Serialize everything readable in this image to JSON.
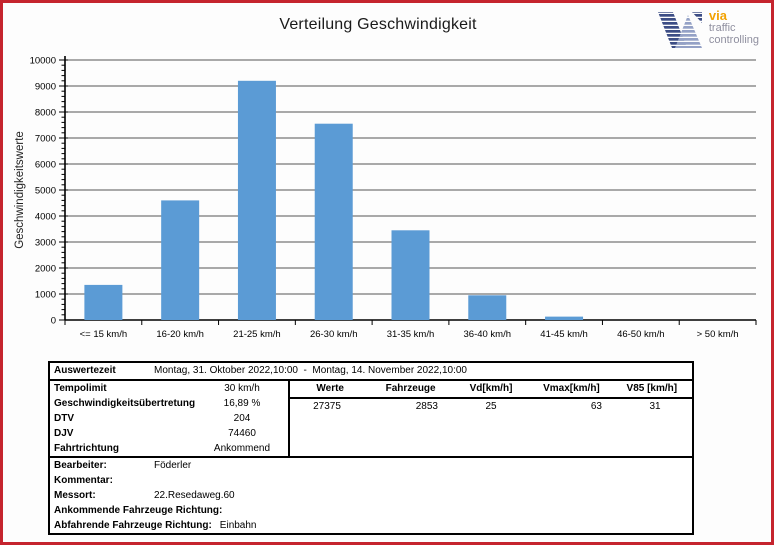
{
  "page": {
    "title": "Verteilung Geschwindigkeit",
    "frame_color": "#C5242E"
  },
  "logo": {
    "brand": "via",
    "line1": "traffic",
    "line2": "controlling",
    "brand_color": "#F2A202",
    "text_color": "#8F8F9F",
    "icon_dark": "#3C4D85",
    "icon_light": "#94A1C6"
  },
  "chart_data": {
    "type": "bar",
    "title": "Verteilung Geschwindigkeit",
    "categories": [
      "<= 15 km/h",
      "16-20 km/h",
      "21-25 km/h",
      "26-30 km/h",
      "31-35 km/h",
      "36-40 km/h",
      "41-45 km/h",
      "46-50 km/h",
      "> 50 km/h"
    ],
    "values": [
      1350,
      4600,
      9200,
      7550,
      3450,
      950,
      130,
      0,
      0
    ],
    "xlabel": "",
    "ylabel": "Geschwindigkeitswerte",
    "ylim": [
      0,
      10000
    ],
    "ytick_step": 1000,
    "minor_tick_step": 200,
    "grid": true,
    "grid_color": "#555555",
    "bar_color": "#5B9BD5",
    "legend": "none"
  },
  "info_table": {
    "auswertezeit": {
      "label": "Auswertezeit",
      "value": "Montag, 31. Oktober 2022,10:00  -  Montag, 14. November 2022,10:00"
    },
    "left_rows": [
      {
        "label": "Tempolimit",
        "value": "30 km/h"
      },
      {
        "label": "Geschwindigkeitsübertretung",
        "value": "16,89 %"
      },
      {
        "label": "DTV",
        "value": "204"
      },
      {
        "label": "DJV",
        "value": "74460"
      },
      {
        "label": "Fahrtrichtung",
        "value": "Ankommend"
      }
    ],
    "stats": {
      "headers": [
        "Werte",
        "Fahrzeuge",
        "Vd[km/h]",
        "Vmax[km/h]",
        "V85 [km/h]"
      ],
      "values": [
        "27375",
        "2853",
        "25",
        "63",
        "31"
      ],
      "value_align": [
        "center",
        "right",
        "center",
        "right",
        "center"
      ]
    },
    "bottom_rows": [
      {
        "label": "Bearbeiter:",
        "value": "Föderler"
      },
      {
        "label": "Kommentar:",
        "value": ""
      },
      {
        "label": "Messort:",
        "value": "22.Resedaweg.60"
      },
      {
        "label": "Ankommende Fahrzeuge Richtung:",
        "value": ""
      },
      {
        "label": "Abfahrende Fahrzeuge Richtung:",
        "value": "Einbahn"
      }
    ]
  }
}
